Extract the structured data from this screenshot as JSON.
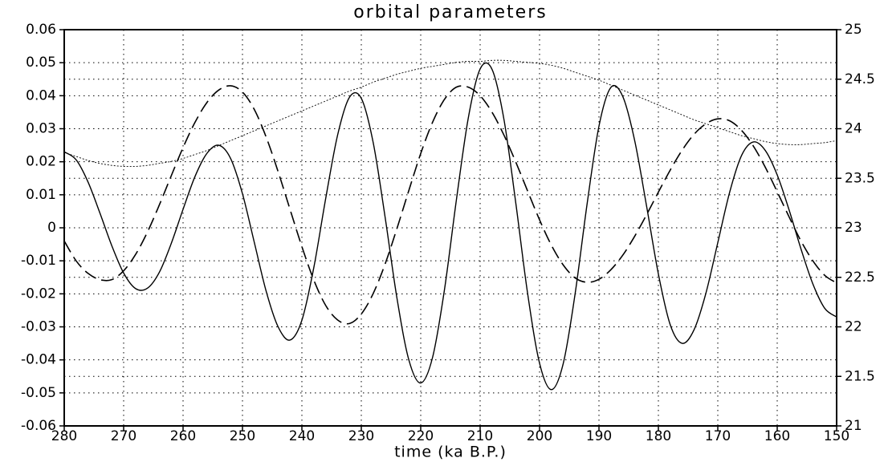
{
  "chart_data": {
    "type": "line",
    "title": "orbital parameters",
    "x_label": "time (ka B.P.)",
    "x": [
      280,
      278,
      276,
      274,
      272,
      270,
      268,
      266,
      264,
      262,
      260,
      258,
      256,
      254,
      252,
      250,
      248,
      246,
      244,
      242,
      240,
      238,
      236,
      234,
      232,
      230,
      228,
      226,
      224,
      222,
      220,
      218,
      216,
      214,
      212,
      210,
      208,
      206,
      204,
      202,
      200,
      198,
      196,
      194,
      192,
      190,
      188,
      186,
      184,
      182,
      180,
      178,
      176,
      174,
      172,
      170,
      168,
      166,
      164,
      162,
      160,
      158,
      156,
      154,
      152,
      150
    ],
    "series": [
      {
        "color": "#000000",
        "line_style": "solid",
        "values": [
          0.023,
          0.0206,
          0.0139,
          0.0045,
          -0.0054,
          -0.0137,
          -0.0184,
          -0.0183,
          -0.0135,
          -0.0048,
          0.0056,
          0.0155,
          0.0225,
          0.025,
          0.021,
          0.0103,
          -0.0045,
          -0.0193,
          -0.03,
          -0.034,
          -0.028,
          -0.0121,
          0.0088,
          0.028,
          0.0395,
          0.0392,
          0.0258,
          0.0033,
          -0.0213,
          -0.04,
          -0.047,
          -0.0392,
          -0.0187,
          0.0084,
          0.0332,
          0.0481,
          0.048,
          0.0329,
          0.0075,
          -0.02,
          -0.041,
          -0.049,
          -0.041,
          -0.0198,
          0.0072,
          0.0308,
          0.0425,
          0.0398,
          0.0265,
          0.0067,
          -0.014,
          -0.0294,
          -0.035,
          -0.0309,
          -0.0198,
          -0.0045,
          0.0108,
          0.0219,
          0.026,
          0.0234,
          0.016,
          0.0054,
          -0.0064,
          -0.017,
          -0.0244,
          -0.027
        ]
      },
      {
        "color": "#000000",
        "line_style": "dashed",
        "values": [
          -0.004,
          -0.01,
          -0.0138,
          -0.0157,
          -0.0157,
          -0.013,
          -0.0081,
          -0.0013,
          0.0069,
          0.0157,
          0.0243,
          0.0319,
          0.0379,
          0.0417,
          0.043,
          0.0411,
          0.0358,
          0.0274,
          0.017,
          0.0056,
          -0.0057,
          -0.0158,
          -0.0235,
          -0.0279,
          -0.029,
          -0.0261,
          -0.0199,
          -0.011,
          -0.0002,
          0.0113,
          0.0225,
          0.032,
          0.0389,
          0.0426,
          0.0426,
          0.04,
          0.035,
          0.0281,
          0.0199,
          0.0111,
          0.0024,
          -0.0053,
          -0.0113,
          -0.0152,
          -0.0165,
          -0.0156,
          -0.0127,
          -0.0083,
          -0.0026,
          0.0039,
          0.0108,
          0.0175,
          0.0235,
          0.0283,
          0.0315,
          0.033,
          0.0324,
          0.0295,
          0.0247,
          0.0183,
          0.0109,
          0.0033,
          -0.004,
          -0.01,
          -0.0144,
          -0.0167
        ]
      },
      {
        "color": "#000000",
        "line_style": "dotted",
        "axis": "y2",
        "values": [
          23.76,
          23.72,
          23.68,
          23.65,
          23.63,
          23.62,
          23.62,
          23.63,
          23.65,
          23.67,
          23.7,
          23.74,
          23.78,
          23.83,
          23.88,
          23.93,
          23.98,
          24.03,
          24.08,
          24.13,
          24.18,
          24.23,
          24.28,
          24.33,
          24.38,
          24.42,
          24.47,
          24.51,
          24.55,
          24.58,
          24.61,
          24.63,
          24.65,
          24.67,
          24.68,
          24.68,
          24.69,
          24.69,
          24.68,
          24.67,
          24.66,
          24.64,
          24.61,
          24.57,
          24.53,
          24.49,
          24.44,
          24.39,
          24.34,
          24.29,
          24.24,
          24.19,
          24.14,
          24.09,
          24.05,
          24.01,
          23.97,
          23.93,
          23.9,
          23.87,
          23.85,
          23.84,
          23.84,
          23.85,
          23.86,
          23.88
        ]
      }
    ],
    "xlim": [
      280,
      150
    ],
    "xticks": [
      280,
      270,
      260,
      250,
      240,
      230,
      220,
      210,
      200,
      190,
      180,
      170,
      160,
      150
    ],
    "ylim": [
      -0.06,
      0.06
    ],
    "yticks": [
      -0.06,
      -0.05,
      -0.04,
      -0.03,
      -0.02,
      -0.01,
      0,
      0.01,
      0.02,
      0.03,
      0.04,
      0.05,
      0.06
    ],
    "y2lim": [
      21,
      25
    ],
    "y2ticks": [
      21,
      21.5,
      22,
      22.5,
      23,
      23.5,
      24,
      24.5,
      25
    ],
    "grid": true
  }
}
